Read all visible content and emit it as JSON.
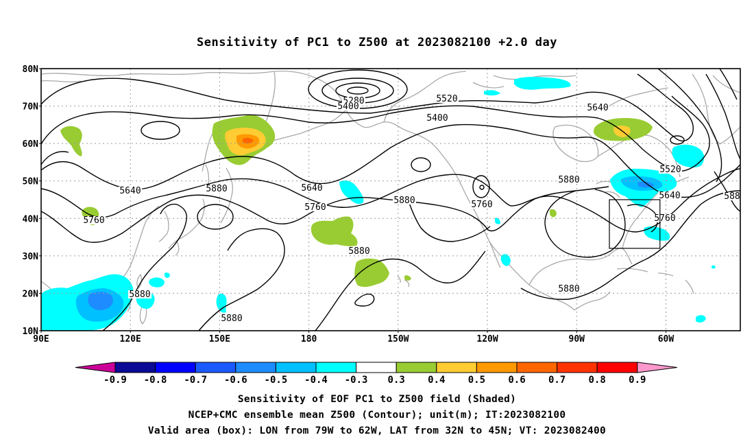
{
  "title": "Sensitivity of PC1 to Z500 at 2023082100 +2.0 day",
  "map": {
    "lat_labels": [
      "80N",
      "70N",
      "60N",
      "50N",
      "40N",
      "30N",
      "20N",
      "10N"
    ],
    "lon_labels": [
      "90E",
      "120E",
      "150E",
      "180",
      "150W",
      "120W",
      "90W",
      "60W"
    ],
    "lon_range_deg_east": [
      90,
      325
    ],
    "lat_range_deg": [
      10,
      80
    ],
    "grid": "dotted",
    "contour_labels": [
      "5280",
      "5400",
      "5520",
      "5640",
      "5400",
      "5640",
      "5880",
      "5640",
      "5760",
      "5880",
      "5760",
      "5880",
      "5880",
      "5520",
      "5640",
      "5760",
      "588",
      "5760",
      "5880",
      "5880",
      "5880"
    ],
    "valid_box": {
      "lon_w": -79,
      "lon_e": -62,
      "lat_s": 32,
      "lat_n": 45
    }
  },
  "colorbar": {
    "labels": [
      "-0.9",
      "-0.8",
      "-0.7",
      "-0.6",
      "-0.5",
      "-0.4",
      "-0.3",
      "0.3",
      "0.4",
      "0.5",
      "0.6",
      "0.7",
      "0.8",
      "0.9"
    ],
    "colors": [
      "#0a0a96",
      "#0000ff",
      "#1a5aff",
      "#1e8cff",
      "#00c0ff",
      "#00ffff",
      "#ffffff",
      "#99cc33",
      "#ffcc33",
      "#ff9900",
      "#ff6600",
      "#ff3300",
      "#ff0000"
    ],
    "end_low_color": "#cc0099",
    "end_high_color": "#ff99cc"
  },
  "caption": {
    "line1": "Sensitivity of EOF PC1 to Z500 field (Shaded)",
    "line2": "NCEP+CMC ensemble mean Z500 (Contour); unit(m); IT:2023082100",
    "line3": "Valid area (box): LON from 79W to 62W, LAT from 32N to 45N; VT: 2023082400"
  }
}
